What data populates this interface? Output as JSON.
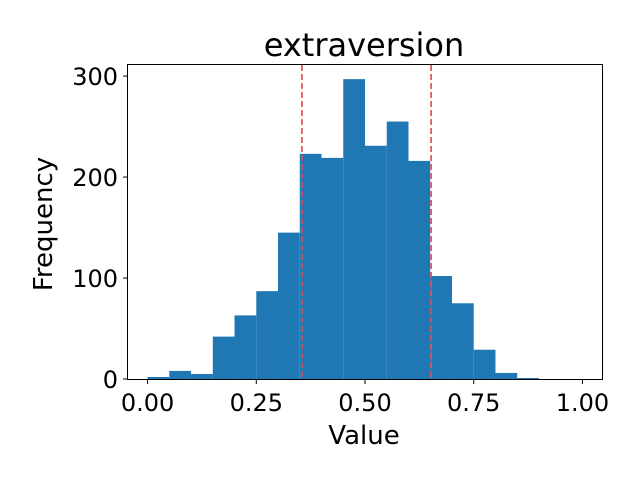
{
  "chart_data": {
    "type": "bar",
    "title": "extraversion",
    "xlabel": "Value",
    "ylabel": "Frequency",
    "xlim": [
      -0.045,
      1.045
    ],
    "ylim": [
      0,
      311
    ],
    "xticks": [
      0.0,
      0.25,
      0.5,
      0.75,
      1.0
    ],
    "xtick_labels": [
      "0.00",
      "0.25",
      "0.50",
      "0.75",
      "1.00"
    ],
    "yticks": [
      0,
      100,
      200,
      300
    ],
    "ytick_labels": [
      "0",
      "100",
      "200",
      "300"
    ],
    "bin_start": 0.0,
    "bin_width": 0.05,
    "values": [
      2,
      8,
      5,
      42,
      63,
      87,
      145,
      223,
      219,
      297,
      231,
      255,
      216,
      102,
      75,
      29,
      6,
      1,
      0,
      0
    ],
    "bar_color": "#1f77b4",
    "reference_lines": [
      0.355,
      0.652
    ],
    "reference_line_color": "#e8474c",
    "grid": false
  }
}
